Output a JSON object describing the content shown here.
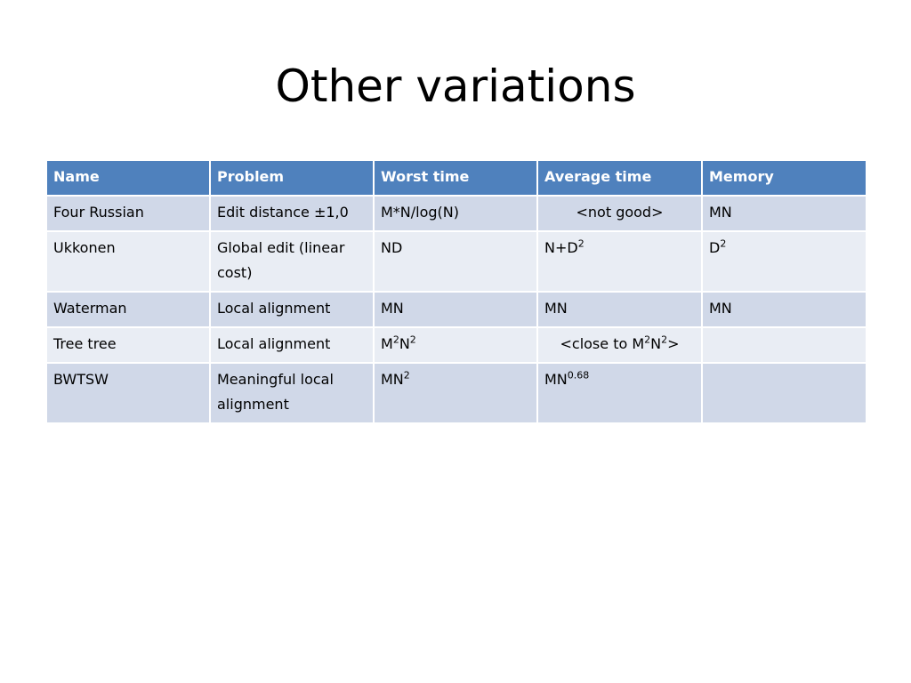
{
  "title": "Other variations",
  "table": {
    "headers": [
      "Name",
      "Problem",
      "Worst time",
      "Average time",
      "Memory"
    ],
    "rows": [
      {
        "name": "Four Russian",
        "problem": "Edit distance  ±1,0",
        "worst": "M*N/log(N)",
        "average": "<not good>",
        "memory": "MN"
      },
      {
        "name": "Ukkonen",
        "problem": "Global edit (linear cost)",
        "worst": "ND",
        "average": {
          "base": "N+D",
          "sup": "2"
        },
        "memory": {
          "base": "D",
          "sup": "2"
        }
      },
      {
        "name": "Waterman",
        "problem": "Local alignment",
        "worst": "MN",
        "average": "MN",
        "memory": "MN"
      },
      {
        "name": "Tree tree",
        "problem": "Local alignment",
        "worst": {
          "p1": "M",
          "s1": "2",
          "p2": "N",
          "s2": "2"
        },
        "average": {
          "pre": "<close to M",
          "s1": "2",
          "mid": "N",
          "s2": "2",
          "post": ">"
        },
        "memory": ""
      },
      {
        "name": "BWTSW",
        "problem": "Meaningful local alignment",
        "worst": {
          "base": "MN",
          "sup": "2"
        },
        "average": {
          "base": "MN",
          "sup": "0.68"
        },
        "memory": ""
      }
    ]
  }
}
